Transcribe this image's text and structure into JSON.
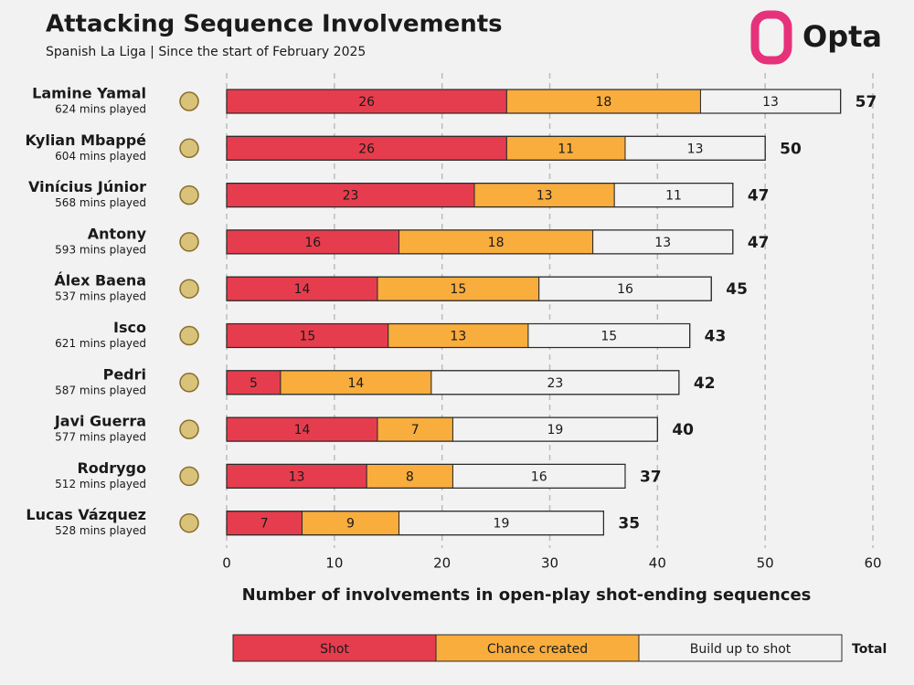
{
  "chart_data": {
    "type": "stacked-bar-horizontal",
    "title": "Attacking Sequence Involvements",
    "subtitle": "Spanish La Liga | Since the start of February 2025",
    "logo": "Opta",
    "categories": [
      "Lamine Yamal",
      "Kylian Mbappé",
      "Vinícius Júnior",
      "Antony",
      "Álex Baena",
      "Isco",
      "Pedri",
      "Javi Guerra",
      "Rodrygo",
      "Lucas Vázquez"
    ],
    "category_notes": [
      "624 mins played",
      "604 mins played",
      "568 mins played",
      "593 mins played",
      "537 mins played",
      "621 mins played",
      "587 mins played",
      "577 mins played",
      "512 mins played",
      "528 mins played"
    ],
    "series": [
      {
        "name": "Shot",
        "color": "#e63d4e",
        "label_color": "#f7b3b9",
        "values": [
          26,
          26,
          23,
          16,
          14,
          15,
          5,
          14,
          13,
          7
        ]
      },
      {
        "name": "Chance created",
        "color": "#f8ad3d",
        "label_color": "#fde2b5",
        "values": [
          18,
          11,
          13,
          18,
          15,
          13,
          14,
          7,
          8,
          9
        ]
      },
      {
        "name": "Build up to shot",
        "color": "#f2f2f2",
        "label_color": "#666666",
        "values": [
          13,
          13,
          11,
          13,
          16,
          15,
          23,
          19,
          16,
          19
        ]
      }
    ],
    "totals": [
      57,
      50,
      47,
      47,
      45,
      43,
      42,
      40,
      37,
      35
    ],
    "total_label": "Total",
    "xlabel": "Number of involvements in open-play shot-ending sequences",
    "xlim": [
      0,
      60
    ],
    "xticks": [
      0,
      10,
      20,
      30,
      40,
      50,
      60
    ],
    "grid": true
  }
}
